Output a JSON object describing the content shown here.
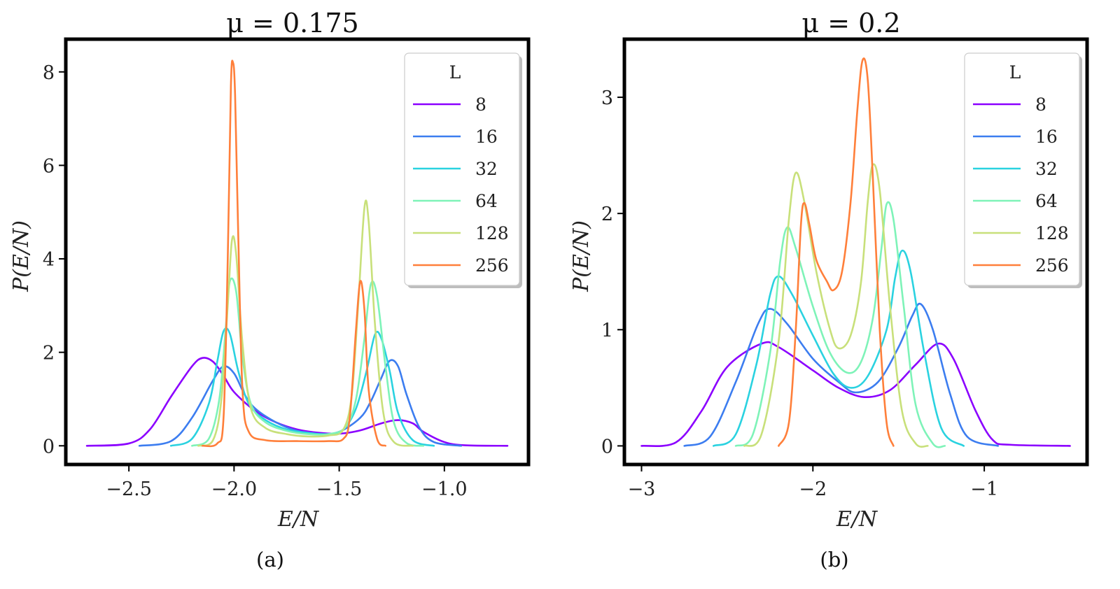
{
  "figure": {
    "captions": [
      "(a)",
      "(b)"
    ]
  },
  "chart_data": [
    {
      "type": "line",
      "title": "μ = 0.175",
      "xlabel": "E/N",
      "ylabel": "P(E/N)",
      "xlim": [
        -2.8,
        -0.6
      ],
      "ylim": [
        -0.4,
        8.7
      ],
      "xticks": [
        -2.5,
        -2.0,
        -1.5,
        -1.0
      ],
      "xtick_labels": [
        "−2.5",
        "−2.0",
        "−1.5",
        "−1.0"
      ],
      "yticks": [
        0,
        2,
        4,
        6,
        8
      ],
      "ytick_labels": [
        "0",
        "2",
        "4",
        "6",
        "8"
      ],
      "grid": false,
      "legend": {
        "title": "L",
        "placement": "top-right"
      },
      "series": [
        {
          "name": "8",
          "color": "#8b00ff",
          "points": [
            [
              -2.7,
              0
            ],
            [
              -2.5,
              0.05
            ],
            [
              -2.4,
              0.35
            ],
            [
              -2.3,
              1.05
            ],
            [
              -2.2,
              1.7
            ],
            [
              -2.15,
              1.88
            ],
            [
              -2.1,
              1.8
            ],
            [
              -2.05,
              1.5
            ],
            [
              -2.0,
              1.15
            ],
            [
              -1.9,
              0.75
            ],
            [
              -1.8,
              0.5
            ],
            [
              -1.7,
              0.35
            ],
            [
              -1.6,
              0.28
            ],
            [
              -1.5,
              0.26
            ],
            [
              -1.4,
              0.33
            ],
            [
              -1.3,
              0.48
            ],
            [
              -1.22,
              0.55
            ],
            [
              -1.15,
              0.48
            ],
            [
              -1.1,
              0.3
            ],
            [
              -1.0,
              0.08
            ],
            [
              -0.9,
              0.01
            ],
            [
              -0.7,
              0
            ]
          ]
        },
        {
          "name": "16",
          "color": "#3c7df0",
          "points": [
            [
              -2.45,
              0
            ],
            [
              -2.3,
              0.1
            ],
            [
              -2.2,
              0.6
            ],
            [
              -2.1,
              1.4
            ],
            [
              -2.05,
              1.7
            ],
            [
              -2.0,
              1.55
            ],
            [
              -1.95,
              1.1
            ],
            [
              -1.9,
              0.8
            ],
            [
              -1.8,
              0.5
            ],
            [
              -1.7,
              0.32
            ],
            [
              -1.6,
              0.25
            ],
            [
              -1.5,
              0.3
            ],
            [
              -1.4,
              0.6
            ],
            [
              -1.35,
              0.95
            ],
            [
              -1.3,
              1.45
            ],
            [
              -1.26,
              1.82
            ],
            [
              -1.22,
              1.7
            ],
            [
              -1.18,
              1.1
            ],
            [
              -1.12,
              0.4
            ],
            [
              -1.05,
              0.08
            ],
            [
              -0.92,
              0
            ]
          ]
        },
        {
          "name": "32",
          "color": "#2ad2e0",
          "points": [
            [
              -2.3,
              0
            ],
            [
              -2.2,
              0.15
            ],
            [
              -2.12,
              0.9
            ],
            [
              -2.08,
              1.8
            ],
            [
              -2.05,
              2.45
            ],
            [
              -2.02,
              2.4
            ],
            [
              -1.98,
              1.6
            ],
            [
              -1.93,
              0.9
            ],
            [
              -1.85,
              0.55
            ],
            [
              -1.75,
              0.35
            ],
            [
              -1.65,
              0.28
            ],
            [
              -1.55,
              0.25
            ],
            [
              -1.48,
              0.35
            ],
            [
              -1.42,
              0.8
            ],
            [
              -1.37,
              1.6
            ],
            [
              -1.33,
              2.38
            ],
            [
              -1.3,
              2.3
            ],
            [
              -1.26,
              1.6
            ],
            [
              -1.22,
              0.7
            ],
            [
              -1.15,
              0.12
            ],
            [
              -1.05,
              0
            ]
          ]
        },
        {
          "name": "64",
          "color": "#7ef3b8",
          "points": [
            [
              -2.2,
              0
            ],
            [
              -2.12,
              0.15
            ],
            [
              -2.07,
              1.0
            ],
            [
              -2.04,
              2.5
            ],
            [
              -2.02,
              3.52
            ],
            [
              -1.99,
              3.3
            ],
            [
              -1.96,
              1.9
            ],
            [
              -1.92,
              0.9
            ],
            [
              -1.85,
              0.5
            ],
            [
              -1.75,
              0.32
            ],
            [
              -1.65,
              0.25
            ],
            [
              -1.55,
              0.25
            ],
            [
              -1.47,
              0.4
            ],
            [
              -1.42,
              1.0
            ],
            [
              -1.38,
              2.3
            ],
            [
              -1.35,
              3.45
            ],
            [
              -1.32,
              3.2
            ],
            [
              -1.28,
              1.7
            ],
            [
              -1.24,
              0.5
            ],
            [
              -1.18,
              0.06
            ],
            [
              -1.1,
              0
            ]
          ]
        },
        {
          "name": "128",
          "color": "#c8e07a",
          "points": [
            [
              -2.17,
              0
            ],
            [
              -2.1,
              0.12
            ],
            [
              -2.06,
              1.0
            ],
            [
              -2.03,
              3.0
            ],
            [
              -2.01,
              4.4
            ],
            [
              -1.99,
              4.1
            ],
            [
              -1.96,
              2.2
            ],
            [
              -1.92,
              0.8
            ],
            [
              -1.85,
              0.38
            ],
            [
              -1.75,
              0.25
            ],
            [
              -1.65,
              0.2
            ],
            [
              -1.55,
              0.22
            ],
            [
              -1.48,
              0.35
            ],
            [
              -1.44,
              1.1
            ],
            [
              -1.41,
              3.0
            ],
            [
              -1.38,
              5.1
            ],
            [
              -1.36,
              4.8
            ],
            [
              -1.33,
              2.6
            ],
            [
              -1.29,
              0.7
            ],
            [
              -1.24,
              0.08
            ],
            [
              -1.15,
              0
            ]
          ]
        },
        {
          "name": "256",
          "color": "#ff7f3a",
          "points": [
            [
              -2.15,
              0
            ],
            [
              -2.08,
              0.05
            ],
            [
              -2.05,
              0.6
            ],
            [
              -2.03,
              4.0
            ],
            [
              -2.015,
              7.7
            ],
            [
              -2.005,
              8.2
            ],
            [
              -1.995,
              7.5
            ],
            [
              -1.98,
              4.5
            ],
            [
              -1.96,
              1.2
            ],
            [
              -1.93,
              0.3
            ],
            [
              -1.85,
              0.12
            ],
            [
              -1.7,
              0.1
            ],
            [
              -1.55,
              0.1
            ],
            [
              -1.48,
              0.15
            ],
            [
              -1.45,
              0.6
            ],
            [
              -1.42,
              2.5
            ],
            [
              -1.4,
              3.52
            ],
            [
              -1.38,
              2.9
            ],
            [
              -1.36,
              1.2
            ],
            [
              -1.32,
              0.15
            ],
            [
              -1.28,
              0
            ]
          ]
        }
      ]
    },
    {
      "type": "line",
      "title": "μ = 0.2",
      "xlabel": "E/N",
      "ylabel": "P(E/N)",
      "xlim": [
        -3.1,
        -0.4
      ],
      "ylim": [
        -0.16,
        3.5
      ],
      "xticks": [
        -3,
        -2,
        -1
      ],
      "xtick_labels": [
        "−3",
        "−2",
        "−1"
      ],
      "yticks": [
        0,
        1,
        2,
        3
      ],
      "ytick_labels": [
        "0",
        "1",
        "2",
        "3"
      ],
      "grid": false,
      "legend": {
        "title": "L",
        "placement": "top-right"
      },
      "series": [
        {
          "name": "8",
          "color": "#8b00ff",
          "points": [
            [
              -3.0,
              0
            ],
            [
              -2.8,
              0.03
            ],
            [
              -2.65,
              0.3
            ],
            [
              -2.5,
              0.68
            ],
            [
              -2.3,
              0.88
            ],
            [
              -2.2,
              0.85
            ],
            [
              -2.0,
              0.65
            ],
            [
              -1.85,
              0.5
            ],
            [
              -1.7,
              0.42
            ],
            [
              -1.55,
              0.48
            ],
            [
              -1.4,
              0.7
            ],
            [
              -1.27,
              0.88
            ],
            [
              -1.18,
              0.75
            ],
            [
              -1.05,
              0.3
            ],
            [
              -0.95,
              0.05
            ],
            [
              -0.85,
              0.01
            ],
            [
              -0.5,
              0
            ]
          ]
        },
        {
          "name": "16",
          "color": "#3c7df0",
          "points": [
            [
              -2.75,
              0
            ],
            [
              -2.6,
              0.08
            ],
            [
              -2.45,
              0.55
            ],
            [
              -2.32,
              1.05
            ],
            [
              -2.25,
              1.18
            ],
            [
              -2.15,
              1.05
            ],
            [
              -2.0,
              0.75
            ],
            [
              -1.85,
              0.55
            ],
            [
              -1.75,
              0.46
            ],
            [
              -1.62,
              0.55
            ],
            [
              -1.5,
              0.85
            ],
            [
              -1.42,
              1.12
            ],
            [
              -1.37,
              1.22
            ],
            [
              -1.3,
              1.0
            ],
            [
              -1.2,
              0.45
            ],
            [
              -1.1,
              0.08
            ],
            [
              -0.92,
              0
            ]
          ]
        },
        {
          "name": "32",
          "color": "#2ad2e0",
          "points": [
            [
              -2.58,
              0
            ],
            [
              -2.45,
              0.1
            ],
            [
              -2.33,
              0.7
            ],
            [
              -2.25,
              1.3
            ],
            [
              -2.2,
              1.46
            ],
            [
              -2.12,
              1.3
            ],
            [
              -2.0,
              0.95
            ],
            [
              -1.88,
              0.62
            ],
            [
              -1.78,
              0.5
            ],
            [
              -1.68,
              0.6
            ],
            [
              -1.57,
              1.0
            ],
            [
              -1.52,
              1.45
            ],
            [
              -1.48,
              1.68
            ],
            [
              -1.43,
              1.5
            ],
            [
              -1.35,
              0.8
            ],
            [
              -1.25,
              0.15
            ],
            [
              -1.12,
              0
            ]
          ]
        },
        {
          "name": "64",
          "color": "#7ef3b8",
          "points": [
            [
              -2.45,
              0
            ],
            [
              -2.35,
              0.1
            ],
            [
              -2.25,
              0.8
            ],
            [
              -2.19,
              1.6
            ],
            [
              -2.15,
              1.88
            ],
            [
              -2.1,
              1.7
            ],
            [
              -2.0,
              1.2
            ],
            [
              -1.9,
              0.8
            ],
            [
              -1.8,
              0.63
            ],
            [
              -1.72,
              0.72
            ],
            [
              -1.65,
              1.1
            ],
            [
              -1.6,
              1.7
            ],
            [
              -1.57,
              2.08
            ],
            [
              -1.53,
              1.95
            ],
            [
              -1.47,
              1.2
            ],
            [
              -1.4,
              0.35
            ],
            [
              -1.3,
              0.02
            ],
            [
              -1.23,
              0
            ]
          ]
        },
        {
          "name": "128",
          "color": "#c8e07a",
          "points": [
            [
              -2.4,
              0
            ],
            [
              -2.3,
              0.1
            ],
            [
              -2.2,
              0.9
            ],
            [
              -2.14,
              1.95
            ],
            [
              -2.1,
              2.35
            ],
            [
              -2.05,
              2.1
            ],
            [
              -1.98,
              1.5
            ],
            [
              -1.9,
              1.0
            ],
            [
              -1.85,
              0.84
            ],
            [
              -1.78,
              0.95
            ],
            [
              -1.72,
              1.4
            ],
            [
              -1.68,
              2.1
            ],
            [
              -1.65,
              2.42
            ],
            [
              -1.61,
              2.2
            ],
            [
              -1.55,
              1.2
            ],
            [
              -1.48,
              0.3
            ],
            [
              -1.4,
              0.02
            ],
            [
              -1.33,
              0
            ]
          ]
        },
        {
          "name": "256",
          "color": "#ff7f3a",
          "points": [
            [
              -2.2,
              0
            ],
            [
              -2.14,
              0.2
            ],
            [
              -2.1,
              1.0
            ],
            [
              -2.07,
              1.9
            ],
            [
              -2.05,
              2.09
            ],
            [
              -2.02,
              1.9
            ],
            [
              -1.98,
              1.6
            ],
            [
              -1.92,
              1.42
            ],
            [
              -1.88,
              1.34
            ],
            [
              -1.83,
              1.5
            ],
            [
              -1.78,
              2.1
            ],
            [
              -1.74,
              2.9
            ],
            [
              -1.71,
              3.32
            ],
            [
              -1.68,
              3.15
            ],
            [
              -1.65,
              2.3
            ],
            [
              -1.61,
              1.0
            ],
            [
              -1.57,
              0.2
            ],
            [
              -1.53,
              0
            ]
          ]
        }
      ]
    }
  ]
}
